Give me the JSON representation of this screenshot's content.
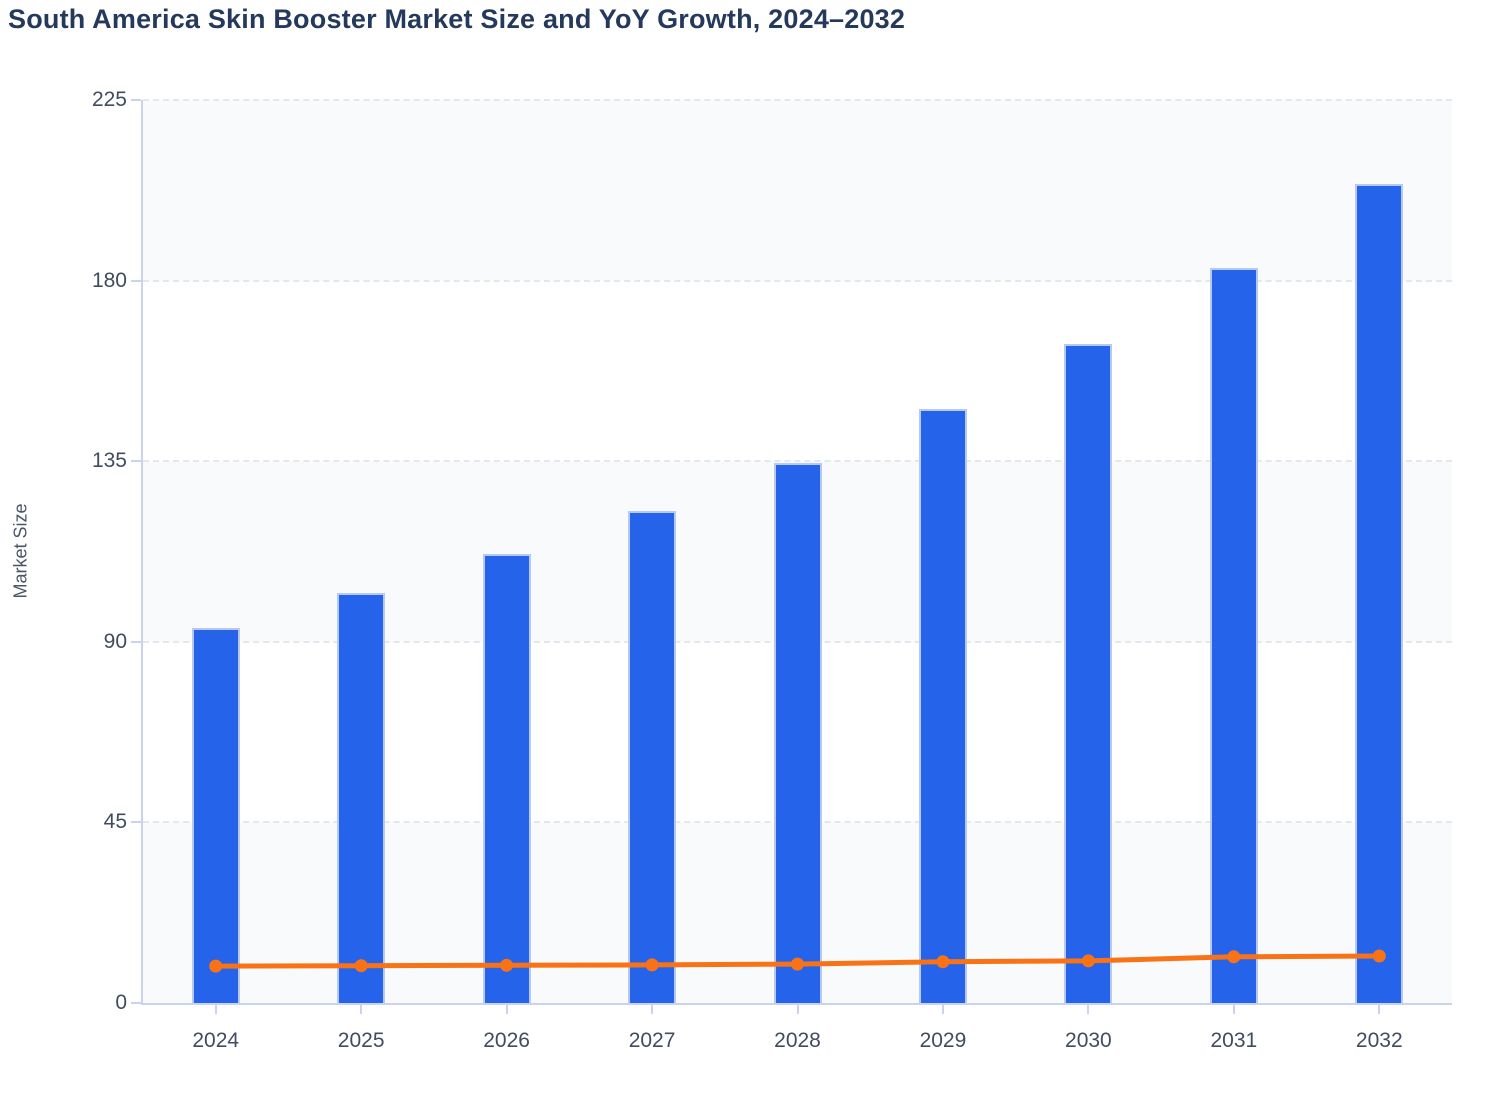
{
  "page": {
    "title": "South America Skin Booster Market Size and YoY Growth, 2024–2032"
  },
  "chart_data": {
    "type": "combo-bar-line",
    "title": "South America Skin Booster Market Size and YoY Growth, 2024–2032",
    "xlabel": "",
    "ylabel": "Market Size",
    "categories": [
      "2024",
      "2025",
      "2026",
      "2027",
      "2028",
      "2029",
      "2030",
      "2031",
      "2032"
    ],
    "series": [
      {
        "name": "Market Size",
        "type": "bar",
        "color": "#2563eb",
        "values": [
          93.4,
          102.2,
          111.9,
          122.6,
          134.6,
          148.1,
          164.3,
          183.2,
          204.0
        ]
      },
      {
        "name": "YoY Growth",
        "type": "line",
        "color": "#f97316",
        "values": [
          9.2,
          9.3,
          9.4,
          9.5,
          9.7,
          10.3,
          10.5,
          11.5,
          11.7
        ]
      }
    ],
    "ylim": [
      0,
      225
    ],
    "y_ticks": [
      0,
      45,
      90,
      135,
      180,
      225
    ],
    "grid": "horizontal-dashed",
    "legend_position": "none",
    "plot_band_colors": [
      "#f8fafc",
      "#ffffff"
    ],
    "axis_color": "#c9d3ec",
    "grid_color": "#e4e7ec",
    "bar_border_color": "#b7c8f1",
    "label_color": "#414c60",
    "title_color": "#24395b"
  }
}
